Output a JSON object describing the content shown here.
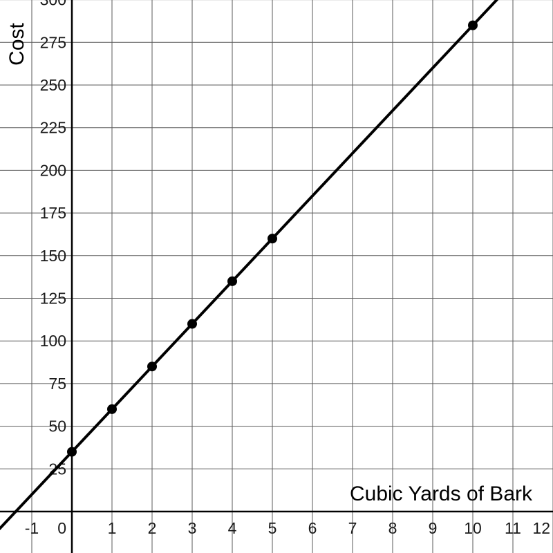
{
  "chart_data": {
    "type": "scatter",
    "xlabel": "Cubic Yards of Bark",
    "ylabel": "Cost",
    "xlim": [
      -1.8,
      12.0
    ],
    "ylim": [
      -25,
      305
    ],
    "x_ticks": [
      -1,
      0,
      1,
      2,
      3,
      4,
      5,
      6,
      7,
      8,
      9,
      10,
      11,
      12
    ],
    "y_ticks": [
      25,
      50,
      75,
      100,
      125,
      150,
      175,
      200,
      225,
      250,
      275,
      300
    ],
    "grid": true,
    "series": [
      {
        "x": [
          0,
          1,
          2,
          3,
          4,
          5,
          10
        ],
        "y": [
          35,
          60,
          85,
          110,
          135,
          160,
          285
        ],
        "trend_line": {
          "slope": 25,
          "intercept": 35
        }
      }
    ]
  }
}
